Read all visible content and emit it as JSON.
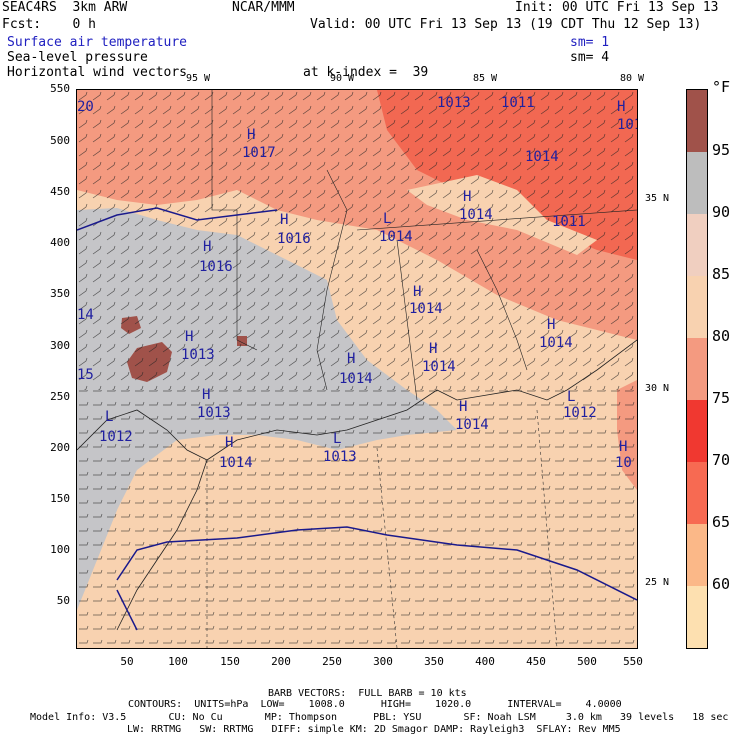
{
  "header": {
    "model": "SEAC4RS  3km ARW",
    "org": "NCAR/MMM",
    "init": "Init: 00 UTC Fri 13 Sep 13",
    "fcst": "Fcst:    0 h",
    "valid": "Valid: 00 UTC Fri 13 Sep 13 (19 CDT Thu 12 Sep 13)",
    "field1": "Surface air temperature",
    "field2": "Sea-level pressure",
    "field3": "Horizontal wind vectors",
    "sm1": "sm= 1",
    "sm2": "sm= 4",
    "k_index": "at k-index =  39"
  },
  "axes": {
    "y_ticks": [
      "550",
      "500",
      "450",
      "400",
      "350",
      "300",
      "250",
      "200",
      "150",
      "100",
      "50"
    ],
    "x_ticks": [
      "50",
      "100",
      "150",
      "200",
      "250",
      "300",
      "350",
      "400",
      "450",
      "500",
      "550"
    ],
    "lon_labels": [
      "95 W",
      "90 W",
      "85 W",
      "80 W"
    ],
    "lat_labels": [
      "35 N",
      "30 N",
      "25 N"
    ]
  },
  "colorbar": {
    "unit": "°F",
    "labels": [
      "95",
      "90",
      "85",
      "80",
      "75",
      "70",
      "65",
      "60"
    ],
    "colors": [
      "#a0524a",
      "#bdbdbd",
      "#f0c8b8",
      "#f8d2b0",
      "#f28a70",
      "#f25a4a",
      "#f9826a",
      "#fbbf8a",
      "#fde0b0"
    ]
  },
  "contour_labels": [
    {
      "t": "H",
      "s": "highs"
    },
    {
      "t": "1017"
    },
    {
      "t": "1016"
    },
    {
      "t": "1016"
    },
    {
      "t": "1014"
    },
    {
      "t": "1013"
    },
    {
      "t": "1011"
    },
    {
      "t": "1014"
    },
    {
      "t": "1014"
    },
    {
      "t": "1011"
    },
    {
      "t": "1014"
    },
    {
      "t": "1014"
    },
    {
      "t": "1014"
    },
    {
      "t": "1013"
    },
    {
      "t": "1014"
    },
    {
      "t": "1013"
    },
    {
      "t": "1012"
    },
    {
      "t": "1014"
    },
    {
      "t": "1013"
    },
    {
      "t": "1013"
    },
    {
      "t": "1012"
    }
  ],
  "footer": {
    "barb": "BARB VECTORS:  FULL BARB = 10 kts",
    "contours": "CONTOURS:  UNITS=hPa  LOW=    1008.0      HIGH=    1020.0      INTERVAL=    4.0000",
    "model_info": "Model Info: V3.5       CU: No Cu       MP: Thompson      PBL: YSU       SF: Noah LSM     3.0 km   39 levels   18 sec",
    "model_info2": "LW: RRTMG   SW: RRTMG   DIFF: simple KM: 2D Smagor DAMP: Rayleigh3  SFLAY: Rev MM5"
  }
}
